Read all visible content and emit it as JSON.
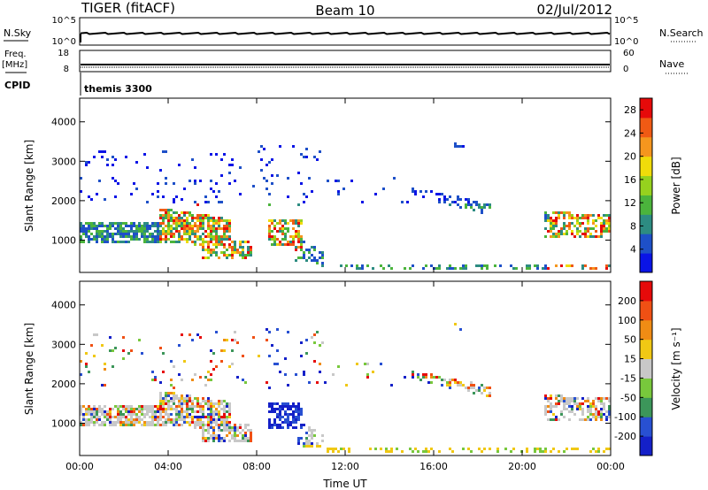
{
  "header": {
    "radar_title": "TIGER (fitACF)",
    "beam_title": "Beam 10",
    "date": "02/Jul/2012"
  },
  "status_panels": {
    "nsky_label": "N.Sky",
    "nsky_ticks": [
      "10^5",
      "10^0"
    ],
    "nsearch_label": "N.Search",
    "nsearch_ticks": [
      "10^5",
      "10^0"
    ],
    "freq_label": "Freq.",
    "freq_unit": "[MHz]",
    "freq_ticks": [
      "18",
      "8"
    ],
    "nave_label": "Nave",
    "nave_ticks": [
      "60",
      "0"
    ],
    "cpid_label": "CPID",
    "cpid_value": "themis 3300"
  },
  "colors": {
    "power_scale": [
      "#0a14e6",
      "#1e50c8",
      "#2d8c82",
      "#4bb43c",
      "#96d21e",
      "#f0dc0a",
      "#f5961e",
      "#f05a14",
      "#e60a0a"
    ],
    "velocity_scale": [
      "#1420c8",
      "#2850d2",
      "#3c965a",
      "#78c83c",
      "#c8c8c8",
      "#f0c814",
      "#f08c14",
      "#f05014",
      "#e60a0a"
    ]
  },
  "chart_data": [
    {
      "type": "heatmap",
      "name": "power",
      "ylabel": "Slant Range [km]",
      "xlabel": "Time UT",
      "x_ticks": [
        "00:00",
        "04:00",
        "08:00",
        "12:00",
        "16:00",
        "20:00",
        "00:00"
      ],
      "xlim_hours": [
        0,
        24
      ],
      "ylim_km": [
        180,
        4600
      ],
      "y_ticks": [
        1000,
        2000,
        3000,
        4000
      ],
      "colorbar_label": "Power [dB]",
      "colorbar_ticks": [
        4,
        8,
        12,
        16,
        20,
        24,
        28
      ],
      "colorbar_range": [
        0,
        30
      ]
    },
    {
      "type": "heatmap",
      "name": "velocity",
      "ylabel": "Slant Range [km]",
      "xlabel": "Time UT",
      "x_ticks": [
        "00:00",
        "04:00",
        "08:00",
        "12:00",
        "16:00",
        "20:00",
        "00:00"
      ],
      "xlim_hours": [
        0,
        24
      ],
      "ylim_km": [
        180,
        4600
      ],
      "y_ticks": [
        1000,
        2000,
        3000,
        4000
      ],
      "colorbar_label": "Velocity [m s⁻¹]",
      "colorbar_ticks": [
        200,
        100,
        50,
        15,
        -15,
        -50,
        -100,
        -200
      ]
    }
  ]
}
